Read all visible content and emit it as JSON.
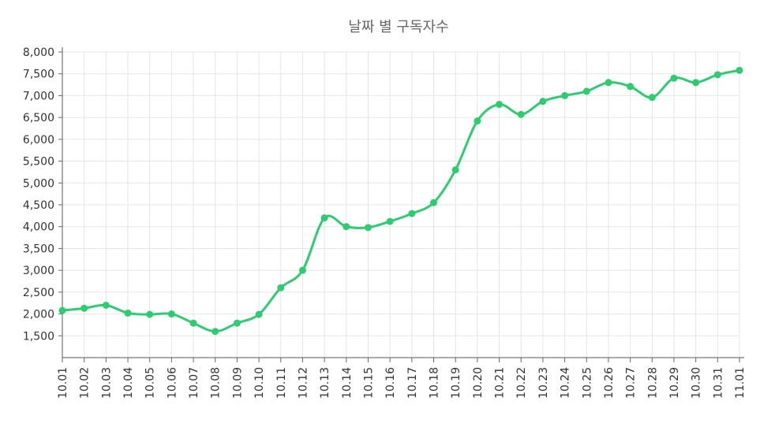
{
  "chart_data": {
    "type": "line",
    "title": "날짜 별 구독자수",
    "xlabel": "",
    "ylabel": "",
    "x": [
      "10.01",
      "10.02",
      "10.03",
      "10.04",
      "10.05",
      "10.06",
      "10.07",
      "10.08",
      "10.09",
      "10.10",
      "10.11",
      "10.12",
      "10.13",
      "10.14",
      "10.15",
      "10.16",
      "10.17",
      "10.18",
      "10.19",
      "10.20",
      "10.21",
      "10.22",
      "10.23",
      "10.24",
      "10.25",
      "10.26",
      "10.27",
      "10.28",
      "10.29",
      "10.30",
      "10.31",
      "11.01"
    ],
    "series": [
      {
        "values": [
          2080,
          2130,
          2200,
          2020,
          1990,
          2000,
          1790,
          1600,
          1790,
          1990,
          2600,
          3000,
          4200,
          4000,
          3980,
          4120,
          4300,
          4550,
          5300,
          6420,
          6800,
          6570,
          6870,
          7000,
          7100,
          7300,
          7210,
          6960,
          7400,
          7300,
          7480,
          7580
        ]
      }
    ],
    "ylim": [
      1000,
      8000
    ],
    "yticks": [
      1500,
      2000,
      2500,
      3000,
      3500,
      4000,
      4500,
      5000,
      5500,
      6000,
      6500,
      7000,
      7500,
      8000
    ],
    "ytick_labels": [
      "1,500",
      "2,000",
      "2,500",
      "3,000",
      "3,500",
      "4,000",
      "4,500",
      "5,000",
      "5,500",
      "6,000",
      "6,500",
      "7,000",
      "7,500",
      "8,000"
    ],
    "grid": true,
    "line_color": "#2ecc71"
  }
}
